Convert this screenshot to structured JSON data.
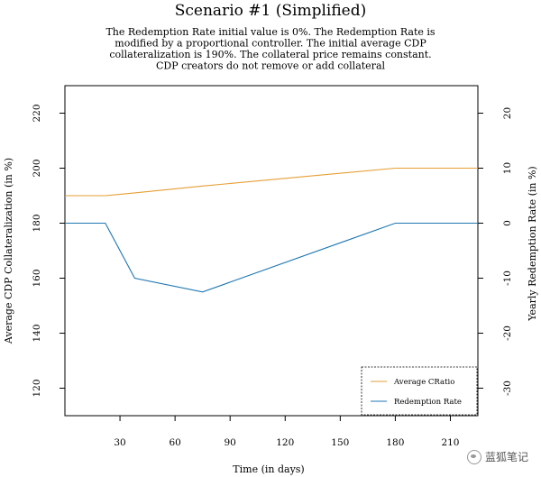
{
  "chart_data": {
    "type": "line",
    "title": "Scenario #1 (Simplified)",
    "subtitle_lines": [
      "The Redemption Rate initial value is 0%. The Redemption Rate is",
      "modified by a proportional controller. The initial average CDP",
      "collateralization is 190%. The collateral price remains constant.",
      "CDP creators do not remove or add collateral"
    ],
    "xlabel": "Time (in days)",
    "ylabel_left": "Average CDP Collateralization (in %)",
    "ylabel_right": "Yearly Redemption Rate (in %)",
    "xlim": [
      0,
      225
    ],
    "ylim_left": [
      110,
      230
    ],
    "ylim_right": [
      -35,
      25
    ],
    "x_ticks": [
      30,
      60,
      90,
      120,
      150,
      180,
      210
    ],
    "y_ticks_left": [
      120,
      140,
      160,
      180,
      200,
      220
    ],
    "y_ticks_right": [
      -30,
      -20,
      -10,
      0,
      10,
      20
    ],
    "legend_position": "bottom-right",
    "series": [
      {
        "name": "Average CRatio",
        "axis": "left",
        "color": "#e69f35",
        "x": [
          0,
          22,
          38,
          75,
          180,
          225
        ],
        "y": [
          190,
          190,
          191,
          193.5,
          200,
          200
        ]
      },
      {
        "name": "Redemption Rate",
        "axis": "right",
        "color": "#1f77b4",
        "x": [
          0,
          22,
          38,
          75,
          180,
          225
        ],
        "y": [
          0,
          0,
          -10,
          -12.5,
          0,
          0
        ]
      }
    ]
  },
  "watermark": {
    "text": "蓝狐笔记",
    "icon": "fox-logo-icon"
  }
}
